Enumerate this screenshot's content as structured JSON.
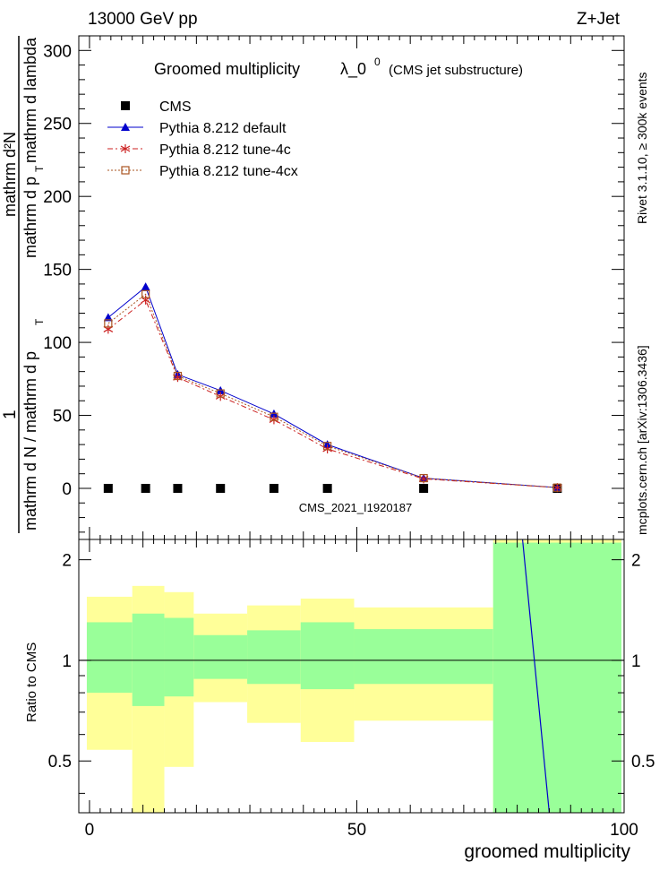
{
  "header": {
    "left": "13000 GeV pp",
    "right": "Z+Jet"
  },
  "side": {
    "rivet": "Rivet 3.1.10, ≥ 300k events",
    "mcplots": "mcplots.cern.ch [arXiv:1306.3436]"
  },
  "chart_data": {
    "type": "line",
    "title": "Groomed multiplicity",
    "title_symbol": "λ_0",
    "title_symbol_sup": "0",
    "title_note": "(CMS jet substructure)",
    "analysis_id": "CMS_2021_I1920187",
    "ylabel_top": "1",
    "ylabel_frac_num": "mathrm d²N",
    "ylabel_frac_den": "mathrm d p",
    "ylabel_frac_den_sub": "T",
    "ylabel_frac_den2": "mathrm d lambda",
    "ylabel_bottom": "mathrm d N / mathrm d p",
    "ylabel_bottom_sub": "T",
    "ratio_ylabel": "Ratio to CMS",
    "xlabel": "groomed multiplicity",
    "xlim": [
      -2,
      100
    ],
    "ylim": [
      -35,
      310
    ],
    "ratio_ylim": [
      0.35,
      2.3
    ],
    "x_ticks": [
      0,
      50,
      100
    ],
    "y_ticks": [
      0,
      50,
      100,
      150,
      200,
      250,
      300
    ],
    "ratio_ticks": [
      0.5,
      1,
      2
    ],
    "legend_position": "top-left",
    "x": [
      3.5,
      10.5,
      16.5,
      24.5,
      34.5,
      44.5,
      62.5,
      87.5
    ],
    "series": [
      {
        "name": "CMS",
        "color": "#000000",
        "marker": "square",
        "values": [
          0,
          0,
          0,
          0,
          0,
          0,
          0,
          0
        ]
      },
      {
        "name": "Pythia 8.212 default",
        "color": "#0000cc",
        "marker": "triangle",
        "values": [
          117,
          138,
          78,
          67,
          51,
          30,
          7,
          0.5
        ]
      },
      {
        "name": "Pythia 8.212 tune-4c",
        "color": "#cc2222",
        "marker": "star",
        "values": [
          109,
          129,
          76,
          63,
          47,
          27,
          6.5,
          0.5
        ]
      },
      {
        "name": "Pythia 8.212 tune-4cx",
        "color": "#aa5522",
        "marker": "open-square",
        "values": [
          113,
          133,
          77,
          65,
          49,
          29,
          7,
          0.5
        ]
      }
    ],
    "ratio_bands": [
      {
        "x0": -0.5,
        "x1": 8.0,
        "green": [
          0.8,
          1.3
        ],
        "yellow": [
          0.54,
          1.55
        ]
      },
      {
        "x0": 8.0,
        "x1": 14.0,
        "green": [
          0.73,
          1.38
        ],
        "yellow": [
          0.35,
          1.67
        ]
      },
      {
        "x0": 14.0,
        "x1": 19.5,
        "green": [
          0.78,
          1.34
        ],
        "yellow": [
          0.48,
          1.6
        ]
      },
      {
        "x0": 19.5,
        "x1": 29.5,
        "green": [
          0.88,
          1.19
        ],
        "yellow": [
          0.75,
          1.38
        ]
      },
      {
        "x0": 29.5,
        "x1": 39.5,
        "green": [
          0.85,
          1.23
        ],
        "yellow": [
          0.65,
          1.46
        ]
      },
      {
        "x0": 39.5,
        "x1": 49.5,
        "green": [
          0.82,
          1.3
        ],
        "yellow": [
          0.57,
          1.53
        ]
      },
      {
        "x0": 49.5,
        "x1": 75.5,
        "green": [
          0.85,
          1.24
        ],
        "yellow": [
          0.66,
          1.44
        ]
      },
      {
        "x0": 75.5,
        "x1": 99.5,
        "green": [
          0.35,
          2.25
        ],
        "yellow": [
          0.35,
          2.3
        ]
      }
    ],
    "ratio_line": {
      "x": [
        81.0,
        86.0
      ],
      "y": [
        2.3,
        0.35
      ],
      "color": "#0000cc"
    }
  }
}
